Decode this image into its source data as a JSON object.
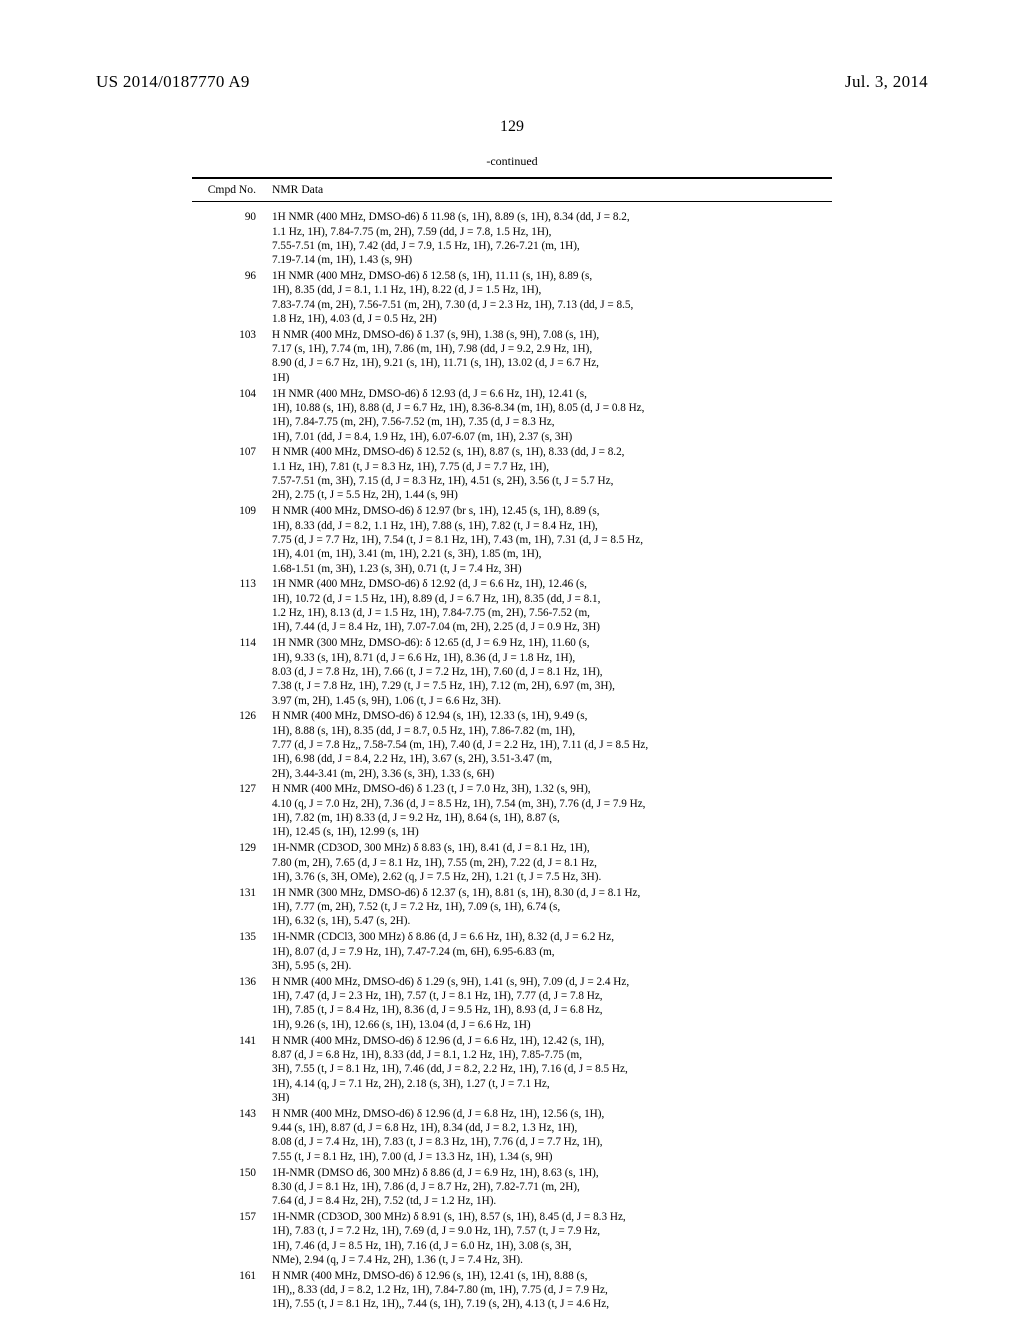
{
  "header": {
    "left": "US 2014/0187770 A9",
    "right": "Jul. 3, 2014"
  },
  "page_number": "129",
  "table": {
    "continued_label": "-continued",
    "columns": {
      "no": "Cmpd No.",
      "data": "NMR Data"
    },
    "rows": [
      {
        "no": "90",
        "data": "1H NMR (400 MHz, DMSO-d6) δ 11.98 (s, 1H), 8.89 (s, 1H), 8.34 (dd, J = 8.2,\n1.1 Hz, 1H), 7.84-7.75 (m, 2H), 7.59 (dd, J = 7.8, 1.5 Hz, 1H),\n7.55-7.51 (m, 1H), 7.42 (dd, J = 7.9, 1.5 Hz, 1H), 7.26-7.21 (m, 1H),\n7.19-7.14 (m, 1H), 1.43 (s, 9H)"
      },
      {
        "no": "96",
        "data": "1H NMR (400 MHz, DMSO-d6) δ 12.58 (s, 1H), 11.11 (s, 1H), 8.89 (s,\n1H), 8.35 (dd, J = 8.1, 1.1 Hz, 1H), 8.22 (d, J = 1.5 Hz, 1H),\n7.83-7.74 (m, 2H), 7.56-7.51 (m, 2H), 7.30 (d, J = 2.3 Hz, 1H), 7.13 (dd, J = 8.5,\n1.8 Hz, 1H), 4.03 (d, J = 0.5 Hz, 2H)"
      },
      {
        "no": "103",
        "data": "H NMR (400 MHz, DMSO-d6) δ 1.37 (s, 9H), 1.38 (s, 9H), 7.08 (s, 1H),\n7.17 (s, 1H), 7.74 (m, 1H), 7.86 (m, 1H), 7.98 (dd, J = 9.2, 2.9 Hz, 1H),\n8.90 (d, J = 6.7 Hz, 1H), 9.21 (s, 1H), 11.71 (s, 1H), 13.02 (d, J = 6.7 Hz,\n1H)"
      },
      {
        "no": "104",
        "data": "1H NMR (400 MHz, DMSO-d6) δ 12.93 (d, J = 6.6 Hz, 1H), 12.41 (s,\n1H), 10.88 (s, 1H), 8.88 (d, J = 6.7 Hz, 1H), 8.36-8.34 (m, 1H), 8.05 (d, J = 0.8 Hz,\n1H), 7.84-7.75 (m, 2H), 7.56-7.52 (m, 1H), 7.35 (d, J = 8.3 Hz,\n1H), 7.01 (dd, J = 8.4, 1.9 Hz, 1H), 6.07-6.07 (m, 1H), 2.37 (s, 3H)"
      },
      {
        "no": "107",
        "data": "H NMR (400 MHz, DMSO-d6) δ 12.52 (s, 1H), 8.87 (s, 1H), 8.33 (dd, J = 8.2,\n1.1 Hz, 1H), 7.81 (t, J = 8.3 Hz, 1H), 7.75 (d, J = 7.7 Hz, 1H),\n7.57-7.51 (m, 3H), 7.15 (d, J = 8.3 Hz, 1H), 4.51 (s, 2H), 3.56 (t, J = 5.7 Hz,\n2H), 2.75 (t, J = 5.5 Hz, 2H), 1.44 (s, 9H)"
      },
      {
        "no": "109",
        "data": "H NMR (400 MHz, DMSO-d6) δ 12.97 (br s, 1H), 12.45 (s, 1H), 8.89 (s,\n1H), 8.33 (dd, J = 8.2, 1.1 Hz, 1H), 7.88 (s, 1H), 7.82 (t, J = 8.4 Hz, 1H),\n7.75 (d, J = 7.7 Hz, 1H), 7.54 (t, J = 8.1 Hz, 1H), 7.43 (m, 1H), 7.31 (d, J = 8.5 Hz,\n1H), 4.01 (m, 1H), 3.41 (m, 1H), 2.21 (s, 3H), 1.85 (m, 1H),\n1.68-1.51 (m, 3H), 1.23 (s, 3H), 0.71 (t, J = 7.4 Hz, 3H)"
      },
      {
        "no": "113",
        "data": "1H NMR (400 MHz, DMSO-d6) δ 12.92 (d, J = 6.6 Hz, 1H), 12.46 (s,\n1H), 10.72 (d, J = 1.5 Hz, 1H), 8.89 (d, J = 6.7 Hz, 1H), 8.35 (dd, J = 8.1,\n1.2 Hz, 1H), 8.13 (d, J = 1.5 Hz, 1H), 7.84-7.75 (m, 2H), 7.56-7.52 (m,\n1H), 7.44 (d, J = 8.4 Hz, 1H), 7.07-7.04 (m, 2H), 2.25 (d, J = 0.9 Hz, 3H)"
      },
      {
        "no": "114",
        "data": "1H NMR (300 MHz, DMSO-d6): δ 12.65 (d, J = 6.9 Hz, 1H), 11.60 (s,\n1H), 9.33 (s, 1H), 8.71 (d, J = 6.6 Hz, 1H), 8.36 (d, J = 1.8 Hz, 1H),\n8.03 (d, J = 7.8 Hz, 1H), 7.66 (t, J = 7.2 Hz, 1H), 7.60 (d, J = 8.1 Hz, 1H),\n7.38 (t, J = 7.8 Hz, 1H), 7.29 (t, J = 7.5 Hz, 1H), 7.12 (m, 2H), 6.97 (m, 3H),\n3.97 (m, 2H), 1.45 (s, 9H), 1.06 (t, J = 6.6 Hz, 3H)."
      },
      {
        "no": "126",
        "data": "H NMR (400 MHz, DMSO-d6) δ 12.94 (s, 1H), 12.33 (s, 1H), 9.49 (s,\n1H), 8.88 (s, 1H), 8.35 (dd, J = 8.7, 0.5 Hz, 1H), 7.86-7.82 (m, 1H),\n7.77 (d, J = 7.8 Hz,, 7.58-7.54 (m, 1H), 7.40 (d, J = 2.2 Hz, 1H), 7.11 (d, J = 8.5 Hz,\n1H), 6.98 (dd, J = 8.4, 2.2 Hz, 1H), 3.67 (s, 2H), 3.51-3.47 (m,\n2H), 3.44-3.41 (m, 2H), 3.36 (s, 3H), 1.33 (s, 6H)"
      },
      {
        "no": "127",
        "data": "H NMR (400 MHz, DMSO-d6) δ 1.23 (t, J = 7.0 Hz, 3H), 1.32 (s, 9H),\n4.10 (q, J = 7.0 Hz, 2H), 7.36 (d, J = 8.5 Hz, 1H), 7.54 (m, 3H), 7.76 (d, J = 7.9 Hz,\n1H), 7.82 (m, 1H) 8.33 (d, J = 9.2 Hz, 1H), 8.64 (s, 1H), 8.87 (s,\n1H), 12.45 (s, 1H), 12.99 (s, 1H)"
      },
      {
        "no": "129",
        "data": "1H-NMR (CD3OD, 300 MHz) δ 8.83 (s, 1H), 8.41 (d, J = 8.1 Hz, 1H),\n7.80 (m, 2H), 7.65 (d, J = 8.1 Hz, 1H), 7.55 (m, 2H), 7.22 (d, J = 8.1 Hz,\n1H), 3.76 (s, 3H, OMe), 2.62 (q, J = 7.5 Hz, 2H), 1.21 (t, J = 7.5 Hz, 3H)."
      },
      {
        "no": "131",
        "data": "1H NMR (300 MHz, DMSO-d6) δ 12.37 (s, 1H), 8.81 (s, 1H), 8.30 (d, J = 8.1 Hz,\n1H), 7.77 (m, 2H), 7.52 (t, J = 7.2 Hz, 1H), 7.09 (s, 1H), 6.74 (s,\n1H), 6.32 (s, 1H), 5.47 (s, 2H)."
      },
      {
        "no": "135",
        "data": "1H-NMR (CDCl3, 300 MHz) δ 8.86 (d, J = 6.6 Hz, 1H), 8.32 (d, J = 6.2 Hz,\n1H), 8.07 (d, J = 7.9 Hz, 1H), 7.47-7.24 (m, 6H), 6.95-6.83 (m,\n3H), 5.95 (s, 2H)."
      },
      {
        "no": "136",
        "data": "H NMR (400 MHz, DMSO-d6) δ 1.29 (s, 9H), 1.41 (s, 9H), 7.09 (d, J = 2.4 Hz,\n1H), 7.47 (d, J = 2.3 Hz, 1H), 7.57 (t, J = 8.1 Hz, 1H), 7.77 (d, J = 7.8 Hz,\n1H), 7.85 (t, J = 8.4 Hz, 1H), 8.36 (d, J = 9.5 Hz, 1H), 8.93 (d, J = 6.8 Hz,\n1H), 9.26 (s, 1H), 12.66 (s, 1H), 13.04 (d, J = 6.6 Hz, 1H)"
      },
      {
        "no": "141",
        "data": "H NMR (400 MHz, DMSO-d6) δ 12.96 (d, J = 6.6 Hz, 1H), 12.42 (s, 1H),\n8.87 (d, J = 6.8 Hz, 1H), 8.33 (dd, J = 8.1, 1.2 Hz, 1H), 7.85-7.75 (m,\n3H), 7.55 (t, J = 8.1 Hz, 1H), 7.46 (dd, J = 8.2, 2.2 Hz, 1H), 7.16 (d, J = 8.5 Hz,\n1H), 4.14 (q, J = 7.1 Hz, 2H), 2.18 (s, 3H), 1.27 (t, J = 7.1 Hz,\n3H)"
      },
      {
        "no": "143",
        "data": "H NMR (400 MHz, DMSO-d6) δ 12.96 (d, J = 6.8 Hz, 1H), 12.56 (s, 1H),\n9.44 (s, 1H), 8.87 (d, J = 6.8 Hz, 1H), 8.34 (dd, J = 8.2, 1.3 Hz, 1H),\n8.08 (d, J = 7.4 Hz, 1H), 7.83 (t, J = 8.3 Hz, 1H), 7.76 (d, J = 7.7 Hz, 1H),\n7.55 (t, J = 8.1 Hz, 1H), 7.00 (d, J = 13.3 Hz, 1H), 1.34 (s, 9H)"
      },
      {
        "no": "150",
        "data": "1H-NMR (DMSO d6, 300 MHz) δ 8.86 (d, J = 6.9 Hz, 1H), 8.63 (s, 1H),\n8.30 (d, J = 8.1 Hz, 1H), 7.86 (d, J = 8.7 Hz, 2H), 7.82-7.71 (m, 2H),\n7.64 (d, J = 8.4 Hz, 2H), 7.52 (td, J = 1.2 Hz, 1H)."
      },
      {
        "no": "157",
        "data": "1H-NMR (CD3OD, 300 MHz) δ 8.91 (s, 1H), 8.57 (s, 1H), 8.45 (d, J = 8.3 Hz,\n1H), 7.83 (t, J = 7.2 Hz, 1H), 7.69 (d, J = 9.0 Hz, 1H), 7.57 (t, J = 7.9 Hz,\n1H), 7.46 (d, J = 8.5 Hz, 1H), 7.16 (d, J = 6.0 Hz, 1H), 3.08 (s, 3H,\nNMe), 2.94 (q, J = 7.4 Hz, 2H), 1.36 (t, J = 7.4 Hz, 3H)."
      },
      {
        "no": "161",
        "data": "H NMR (400 MHz, DMSO-d6) δ 12.96 (s, 1H), 12.41 (s, 1H), 8.88 (s,\n1H),, 8.33 (dd, J = 8.2, 1.2 Hz, 1H), 7.84-7.80 (m, 1H), 7.75 (d, J = 7.9 Hz,\n1H), 7.55 (t, J = 8.1 Hz, 1H),, 7.44 (s, 1H), 7.19 (s, 2H), 4.13 (t, J = 4.6 Hz,"
      }
    ]
  }
}
